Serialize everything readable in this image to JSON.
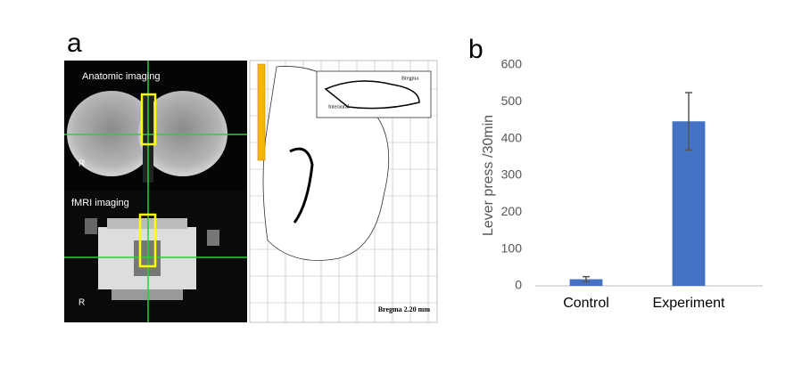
{
  "figure": {
    "panel_a_label": "a",
    "anatomic_label": "Anatomic imaging",
    "fmri_label": "fMRI imaging",
    "orientation_labels": [
      "R",
      "R"
    ],
    "atlas_caption": "Bregma 2.20 mm",
    "atlas_inset_labels": [
      "Interaural",
      "Bregma"
    ]
  },
  "chart_data": {
    "type": "bar",
    "panel_label": "b",
    "y_label": "Lever press /30min",
    "categories": [
      "Control",
      "Experiment"
    ],
    "values": [
      18,
      447
    ],
    "errors": [
      7,
      78
    ],
    "color": "#4472c4",
    "ylim": [
      0,
      600
    ],
    "yticks": [
      0,
      100,
      200,
      300,
      400,
      500,
      600
    ],
    "grid": false
  }
}
